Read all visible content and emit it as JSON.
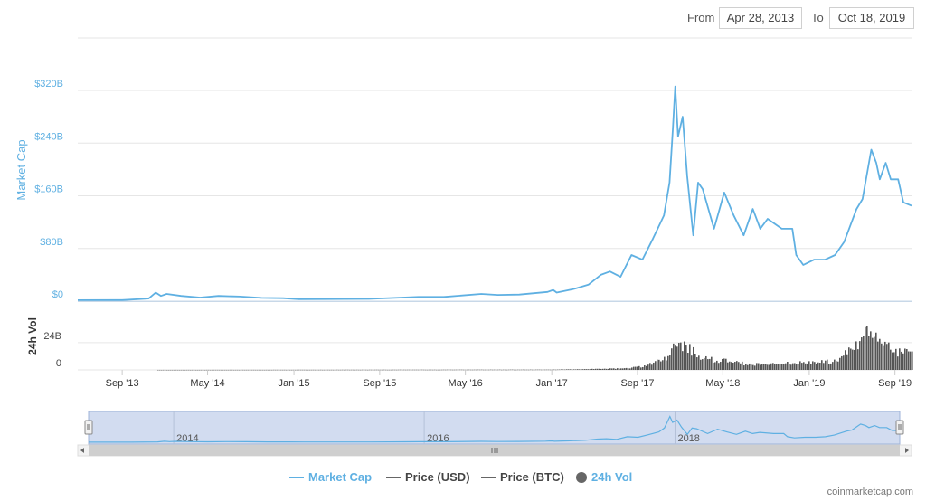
{
  "range": {
    "from_label": "From",
    "from_value": "Apr 28, 2013",
    "to_label": "To",
    "to_value": "Oct 18, 2019"
  },
  "credit": "coinmarketcap.com",
  "colors": {
    "market_cap": "#5fb0e2",
    "volume": "#555555",
    "grid": "#e6e6e6",
    "navigator_fill": "#c7d3ec",
    "price": "#555555"
  },
  "chart_data": {
    "type": "line",
    "x_start": "2013-04-28",
    "x_end": "2019-10-18",
    "x_tick_labels": [
      "Sep '13",
      "May '14",
      "Jan '15",
      "Sep '15",
      "May '16",
      "Jan '17",
      "Sep '17",
      "May '18",
      "Jan '19",
      "Sep '19"
    ],
    "x_tick_dates": [
      "2013-09-01",
      "2014-05-01",
      "2015-01-01",
      "2015-09-01",
      "2016-05-01",
      "2017-01-01",
      "2017-09-01",
      "2018-05-01",
      "2019-01-01",
      "2019-09-01"
    ],
    "market_cap_axis": {
      "label": "Market Cap",
      "ticks": [
        "$0",
        "$80B",
        "$160B",
        "$240B",
        "$320B"
      ],
      "tick_values": [
        0,
        80,
        160,
        240,
        320
      ],
      "ylim": [
        0,
        320
      ],
      "unit": "B USD"
    },
    "volume_axis": {
      "label": "24h Vol",
      "ticks": [
        "0",
        "24B"
      ],
      "tick_values": [
        0,
        24
      ],
      "ylim": [
        0,
        55
      ]
    },
    "series": [
      {
        "name": "Market Cap",
        "unit": "B USD",
        "points": [
          [
            "2013-04-28",
            1.5
          ],
          [
            "2013-09-01",
            1.6
          ],
          [
            "2013-11-15",
            4
          ],
          [
            "2013-12-05",
            13
          ],
          [
            "2013-12-20",
            8
          ],
          [
            "2014-01-05",
            11
          ],
          [
            "2014-02-15",
            8
          ],
          [
            "2014-04-10",
            5.5
          ],
          [
            "2014-06-01",
            8
          ],
          [
            "2014-08-01",
            7
          ],
          [
            "2014-10-01",
            5
          ],
          [
            "2014-12-01",
            4.5
          ],
          [
            "2015-01-15",
            3
          ],
          [
            "2015-04-01",
            3.2
          ],
          [
            "2015-08-01",
            3.5
          ],
          [
            "2015-11-05",
            5.5
          ],
          [
            "2015-12-20",
            6.5
          ],
          [
            "2016-03-01",
            6.5
          ],
          [
            "2016-06-15",
            11
          ],
          [
            "2016-08-01",
            9.5
          ],
          [
            "2016-10-01",
            10
          ],
          [
            "2016-12-20",
            14
          ],
          [
            "2017-01-05",
            17
          ],
          [
            "2017-01-15",
            13
          ],
          [
            "2017-03-01",
            18
          ],
          [
            "2017-04-15",
            25
          ],
          [
            "2017-05-20",
            40
          ],
          [
            "2017-06-15",
            45
          ],
          [
            "2017-07-15",
            37
          ],
          [
            "2017-08-15",
            70
          ],
          [
            "2017-09-15",
            63
          ],
          [
            "2017-10-15",
            95
          ],
          [
            "2017-11-15",
            130
          ],
          [
            "2017-12-01",
            180
          ],
          [
            "2017-12-10",
            260
          ],
          [
            "2017-12-17",
            326
          ],
          [
            "2017-12-25",
            250
          ],
          [
            "2018-01-07",
            280
          ],
          [
            "2018-01-20",
            190
          ],
          [
            "2018-02-06",
            100
          ],
          [
            "2018-02-20",
            180
          ],
          [
            "2018-03-05",
            170
          ],
          [
            "2018-04-06",
            110
          ],
          [
            "2018-05-05",
            165
          ],
          [
            "2018-06-01",
            130
          ],
          [
            "2018-06-29",
            100
          ],
          [
            "2018-07-25",
            140
          ],
          [
            "2018-08-15",
            110
          ],
          [
            "2018-09-05",
            125
          ],
          [
            "2018-10-15",
            110
          ],
          [
            "2018-11-14",
            110
          ],
          [
            "2018-11-25",
            70
          ],
          [
            "2018-12-15",
            55
          ],
          [
            "2019-01-15",
            63
          ],
          [
            "2019-02-15",
            63
          ],
          [
            "2019-03-15",
            70
          ],
          [
            "2019-04-10",
            90
          ],
          [
            "2019-05-15",
            140
          ],
          [
            "2019-06-01",
            155
          ],
          [
            "2019-06-26",
            230
          ],
          [
            "2019-07-10",
            210
          ],
          [
            "2019-07-20",
            185
          ],
          [
            "2019-08-06",
            210
          ],
          [
            "2019-08-20",
            185
          ],
          [
            "2019-09-10",
            185
          ],
          [
            "2019-09-25",
            150
          ],
          [
            "2019-10-18",
            145
          ]
        ]
      },
      {
        "name": "24h Vol",
        "unit": "B USD",
        "points": [
          [
            "2013-04-28",
            0
          ],
          [
            "2017-01-01",
            0.3
          ],
          [
            "2017-05-01",
            1
          ],
          [
            "2017-08-01",
            2
          ],
          [
            "2017-09-15",
            4
          ],
          [
            "2017-11-15",
            12
          ],
          [
            "2017-12-20",
            30
          ],
          [
            "2018-01-07",
            28
          ],
          [
            "2018-02-05",
            20
          ],
          [
            "2018-03-15",
            12
          ],
          [
            "2018-05-05",
            10
          ],
          [
            "2018-07-01",
            7
          ],
          [
            "2018-09-01",
            6
          ],
          [
            "2018-11-20",
            8
          ],
          [
            "2019-01-15",
            8
          ],
          [
            "2019-03-15",
            10
          ],
          [
            "2019-04-15",
            20
          ],
          [
            "2019-05-15",
            28
          ],
          [
            "2019-06-26",
            48
          ],
          [
            "2019-07-15",
            30
          ],
          [
            "2019-08-15",
            25
          ],
          [
            "2019-09-15",
            20
          ],
          [
            "2019-10-18",
            18
          ]
        ]
      }
    ],
    "navigator": {
      "tick_labels": [
        "2014",
        "2016",
        "2018"
      ],
      "tick_dates": [
        "2014-01-01",
        "2016-01-01",
        "2018-01-01"
      ]
    },
    "legend": [
      {
        "name": "Market Cap",
        "color": "#5fb0e2",
        "marker": "line",
        "active": true
      },
      {
        "name": "Price (USD)",
        "color": "#555555",
        "marker": "line",
        "active": false
      },
      {
        "name": "Price (BTC)",
        "color": "#555555",
        "marker": "line",
        "active": false
      },
      {
        "name": "24h Vol",
        "color": "#555555",
        "marker": "dot",
        "active": true
      }
    ],
    "legend_position": "bottom-center",
    "grid": true
  }
}
